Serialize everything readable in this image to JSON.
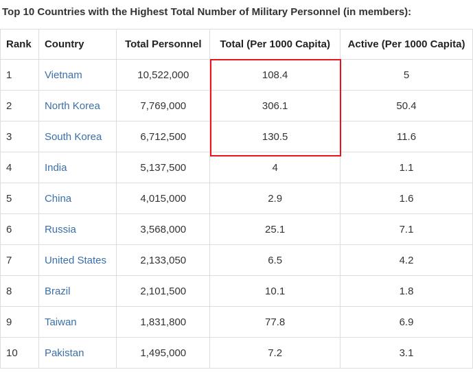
{
  "title": "Top 10 Countries with the Highest Total Number of Military Personnel (in members):",
  "columns": [
    "Rank",
    "Country",
    "Total Personnel",
    "Total (Per 1000 Capita)",
    "Active (Per 1000 Capita)"
  ],
  "rows": [
    {
      "rank": "1",
      "country": "Vietnam",
      "total": "10,522,000",
      "per_capita": "108.4",
      "active": "5"
    },
    {
      "rank": "2",
      "country": "North Korea",
      "total": "7,769,000",
      "per_capita": "306.1",
      "active": "50.4"
    },
    {
      "rank": "3",
      "country": "South Korea",
      "total": "6,712,500",
      "per_capita": "130.5",
      "active": "11.6"
    },
    {
      "rank": "4",
      "country": "India",
      "total": "5,137,500",
      "per_capita": "4",
      "active": "1.1"
    },
    {
      "rank": "5",
      "country": "China",
      "total": "4,015,000",
      "per_capita": "2.9",
      "active": "1.6"
    },
    {
      "rank": "6",
      "country": "Russia",
      "total": "3,568,000",
      "per_capita": "25.1",
      "active": "7.1"
    },
    {
      "rank": "7",
      "country": "United States",
      "total": "2,133,050",
      "per_capita": "6.5",
      "active": "4.2"
    },
    {
      "rank": "8",
      "country": "Brazil",
      "total": "2,101,500",
      "per_capita": "10.1",
      "active": "1.8"
    },
    {
      "rank": "9",
      "country": "Taiwan",
      "total": "1,831,800",
      "per_capita": "77.8",
      "active": "6.9"
    },
    {
      "rank": "10",
      "country": "Pakistan",
      "total": "1,495,000",
      "per_capita": "7.2",
      "active": "3.1"
    }
  ],
  "colors": {
    "link": "#3a6fa8",
    "highlight_border": "#e8141b",
    "grid": "#dddddd"
  }
}
